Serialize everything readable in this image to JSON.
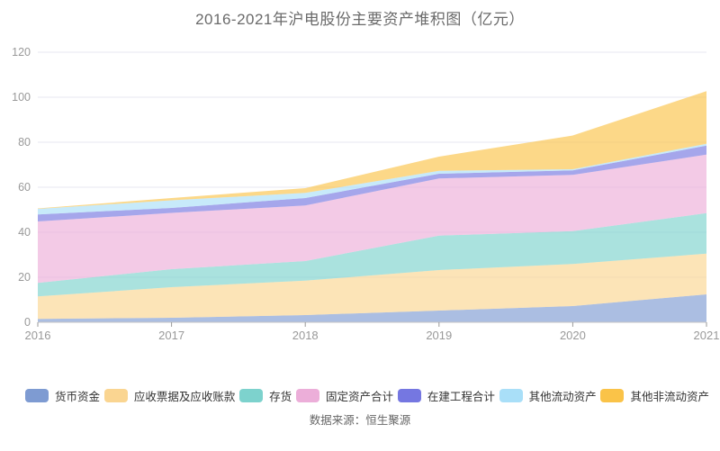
{
  "title": "2016-2021年沪电股份主要资产堆积图（亿元）",
  "source_note": "数据来源：恒生聚源",
  "colors": {
    "grid": "#e7e7f2",
    "axis_line": "#c4c4c4",
    "tick": "#999999",
    "axis_text": "#999999",
    "title_text": "#6a6a6a"
  },
  "chart_data": {
    "type": "area",
    "stacked": true,
    "title": "2016-2021年沪电股份主要资产堆积图（亿元）",
    "categories": [
      "2016",
      "2017",
      "2018",
      "2019",
      "2020",
      "2021"
    ],
    "series": [
      {
        "name": "货币资金",
        "color": "#7E9BD2",
        "values": [
          1.5,
          2.0,
          3.2,
          5.2,
          7.2,
          12.4
        ]
      },
      {
        "name": "应收票据及应收账款",
        "color": "#FAD591",
        "values": [
          10.0,
          13.6,
          15.3,
          18.0,
          18.7,
          18.1
        ]
      },
      {
        "name": "存货",
        "color": "#7DD2CD",
        "values": [
          6.0,
          8.0,
          8.7,
          15.3,
          14.6,
          18.0
        ]
      },
      {
        "name": "固定资产合计",
        "color": "#ECAED9",
        "values": [
          27.3,
          25.0,
          24.7,
          25.4,
          25.0,
          26.0
        ]
      },
      {
        "name": "在建工程合计",
        "color": "#7577E1",
        "values": [
          3.1,
          2.2,
          3.3,
          2.1,
          2.0,
          4.0
        ]
      },
      {
        "name": "其他流动资产",
        "color": "#A9DFF8",
        "values": [
          2.5,
          3.4,
          2.3,
          1.3,
          0.5,
          0.8
        ]
      },
      {
        "name": "其他非流动资产",
        "color": "#FAC348",
        "values": [
          0.2,
          1.0,
          2.1,
          6.3,
          15.0,
          23.4
        ]
      }
    ],
    "xlabel": "",
    "ylabel": "",
    "ylim": [
      0,
      120
    ],
    "ytick_step": 20,
    "grid": true,
    "legend_position": "bottom",
    "area_fill_opacity": 0.65
  }
}
